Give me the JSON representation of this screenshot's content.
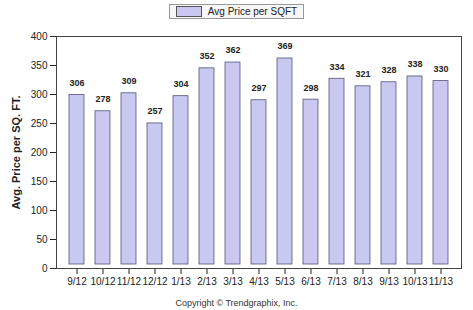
{
  "chart_data": {
    "type": "bar",
    "categories": [
      "9/12",
      "10/12",
      "11/12",
      "12/12",
      "1/13",
      "2/13",
      "3/13",
      "4/13",
      "5/13",
      "6/13",
      "7/13",
      "8/13",
      "9/13",
      "10/13",
      "11/13"
    ],
    "series": [
      {
        "name": "Avg Price per SQFT",
        "color": "#c8c8f0",
        "values": [
          306,
          278,
          309,
          257,
          304,
          352,
          362,
          297,
          369,
          298,
          334,
          321,
          328,
          338,
          330
        ]
      }
    ],
    "y_label": "Avg. Price per SQ. FT.",
    "caption": "Copyright © Trendgraphix, Inc.",
    "ylim": [
      0,
      400
    ],
    "yticks": [
      0,
      50,
      100,
      150,
      200,
      250,
      300,
      350,
      400
    ],
    "grid": false,
    "legend": "top",
    "data_labels": true
  }
}
